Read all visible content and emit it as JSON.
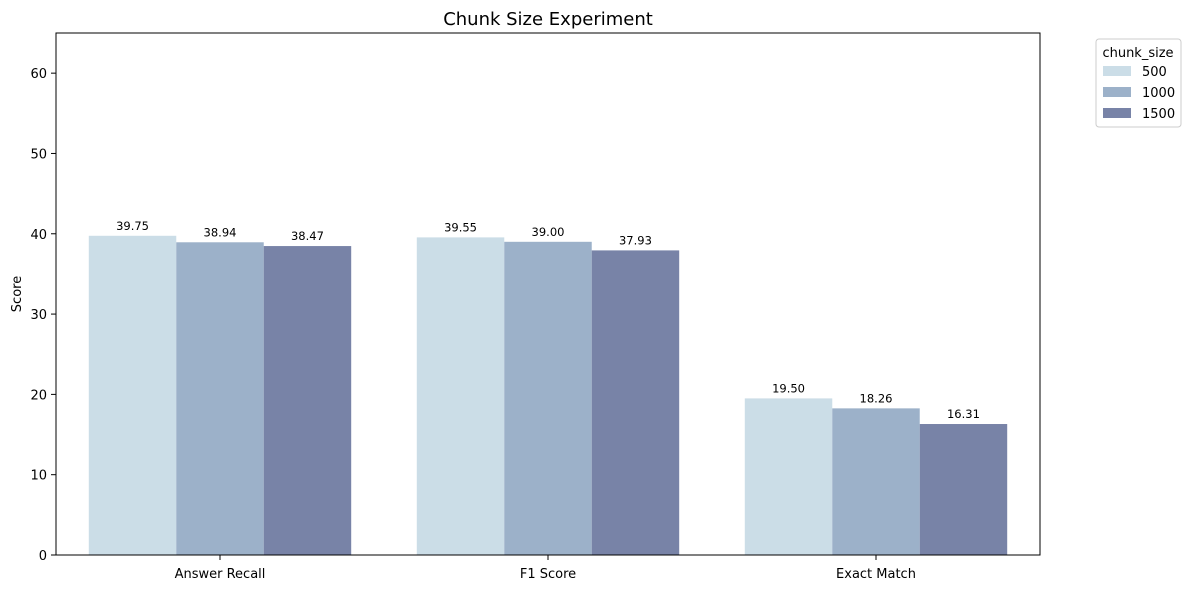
{
  "chart_data": {
    "type": "bar",
    "title": "Chunk Size Experiment",
    "xlabel": "",
    "ylabel": "Score",
    "ylim": [
      0,
      65
    ],
    "yticks": [
      0,
      10,
      20,
      30,
      40,
      50,
      60
    ],
    "categories": [
      "Answer Recall",
      "F1 Score",
      "Exact Match"
    ],
    "legend": {
      "title": "chunk_size",
      "placement": "outside-top-right"
    },
    "grid": false,
    "series": [
      {
        "name": "500",
        "color": "#cbdde7",
        "values": [
          39.75,
          39.55,
          19.5
        ],
        "labels": [
          "39.75",
          "39.55",
          "19.50"
        ]
      },
      {
        "name": "1000",
        "color": "#9cb1c9",
        "values": [
          38.94,
          39.0,
          18.26
        ],
        "labels": [
          "38.94",
          "39.00",
          "18.26"
        ]
      },
      {
        "name": "1500",
        "color": "#7883a7",
        "values": [
          38.47,
          37.93,
          16.31
        ],
        "labels": [
          "38.47",
          "37.93",
          "16.31"
        ]
      }
    ]
  }
}
